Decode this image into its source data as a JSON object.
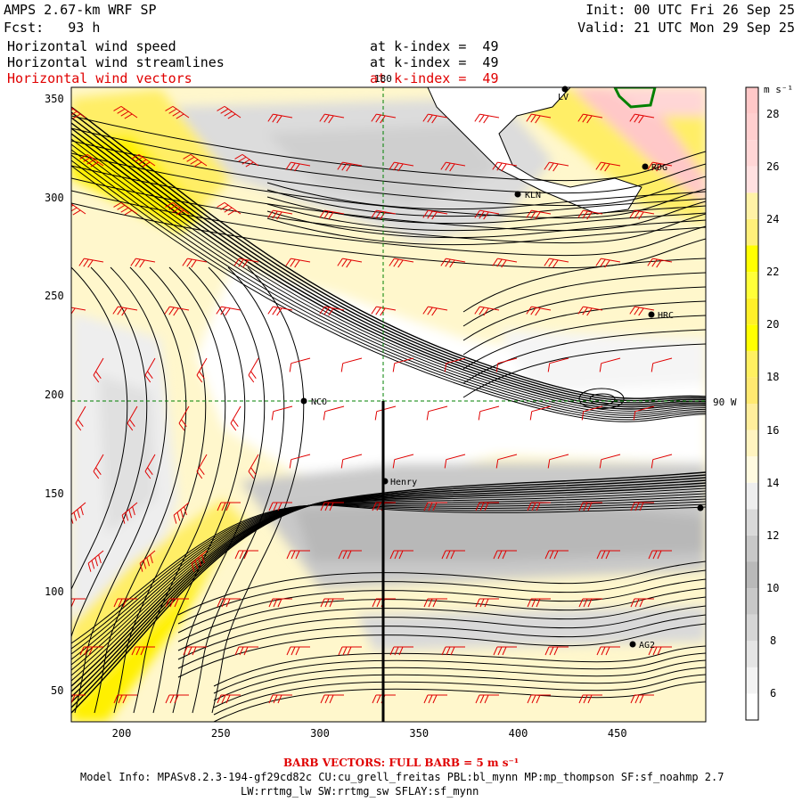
{
  "header": {
    "model_title": "AMPS 2.67-km WRF SP",
    "forecast": "Fcst:   93 h",
    "init": "Init: 00 UTC Fri 26 Sep 25",
    "valid": "Valid: 21 UTC Mon 29 Sep 25",
    "fields": [
      {
        "name": "Horizontal wind speed",
        "level": "at k-index =  49",
        "color": "#000000"
      },
      {
        "name": "Horizontal wind streamlines",
        "level": "at k-index =  49",
        "color": "#000000"
      },
      {
        "name": "Horizontal wind vectors",
        "level": "at k-index =  49",
        "color": "#e00000"
      }
    ]
  },
  "map": {
    "x_axis": {
      "range": [
        175,
        495
      ],
      "ticks": [
        200,
        250,
        300,
        350,
        400,
        450
      ]
    },
    "y_axis": {
      "range": [
        34,
        356
      ],
      "ticks": [
        50,
        100,
        150,
        200,
        250,
        300,
        350
      ]
    },
    "meridian_label": "180",
    "parallel_label": "90 W",
    "stations": [
      {
        "id": "LV",
        "label": "LV"
      },
      {
        "id": "RDG",
        "label": "RDG"
      },
      {
        "id": "KLN",
        "label": "KLN"
      },
      {
        "id": "HRC",
        "label": "HRC"
      },
      {
        "id": "NCO",
        "label": "NCO"
      },
      {
        "id": "Henry",
        "label": "Henry"
      },
      {
        "id": "AG2",
        "label": "AG2"
      },
      {
        "id": "E",
        "label": ""
      }
    ],
    "colors": {
      "streamline": "#000000",
      "barb": "#e00000",
      "grid": "#008000"
    }
  },
  "colorbar": {
    "units": "m s⁻¹",
    "labels": [
      "6",
      "8",
      "10",
      "12",
      "14",
      "16",
      "18",
      "20",
      "22",
      "24",
      "26",
      "28"
    ],
    "bands": [
      {
        "value": 5,
        "color": "#ffffff"
      },
      {
        "value": 6,
        "color": "#f3f3f3"
      },
      {
        "value": 7,
        "color": "#e5e5e5"
      },
      {
        "value": 8,
        "color": "#d6d6d6"
      },
      {
        "value": 9,
        "color": "#c8c8c8"
      },
      {
        "value": 10,
        "color": "#b9b9b9"
      },
      {
        "value": 11,
        "color": "#c8c8c8"
      },
      {
        "value": 12,
        "color": "#d9d9d9"
      },
      {
        "value": 13,
        "color": "#eeeeee"
      },
      {
        "value": 14,
        "color": "#fffae0"
      },
      {
        "value": 15,
        "color": "#fff4c0"
      },
      {
        "value": 16,
        "color": "#ffee9c"
      },
      {
        "value": 17,
        "color": "#ffe970"
      },
      {
        "value": 18,
        "color": "#fff060"
      },
      {
        "value": 19,
        "color": "#ffff00"
      },
      {
        "value": 20,
        "color": "#fff028"
      },
      {
        "value": 21,
        "color": "#ffff38"
      },
      {
        "value": 22,
        "color": "#ffff00"
      },
      {
        "value": 23,
        "color": "#fff07a"
      },
      {
        "value": 24,
        "color": "#fff2a6"
      },
      {
        "value": 25,
        "color": "#ffe0e0"
      },
      {
        "value": 26,
        "color": "#ffd6d6"
      },
      {
        "value": 27,
        "color": "#ffcfcf"
      },
      {
        "value": 28,
        "color": "#ffc8c8"
      }
    ]
  },
  "footer": {
    "barb_note": "BARB VECTORS: FULL BARB = 5 m s⁻¹",
    "model_info": "Model Info: MPASv8.2.3-194-gf29cd82c CU:cu_grell_freitas PBL:bl_mynn MP:mp_thompson SF:sf_noahmp 2.7",
    "model_info2": "LW:rrtmg_lw SW:rrtmg_sw SFLAY:sf_mynn"
  }
}
